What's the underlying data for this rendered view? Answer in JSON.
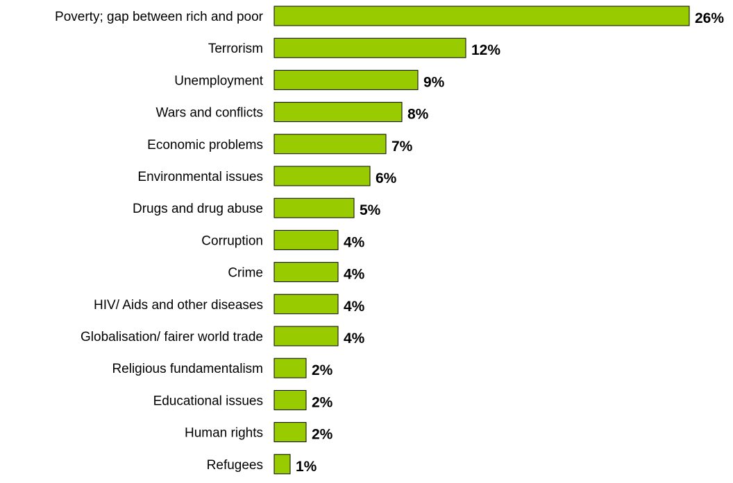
{
  "chart_data": {
    "type": "bar",
    "orientation": "horizontal",
    "categories": [
      "Poverty; gap between rich and poor",
      "Terrorism",
      "Unemployment",
      "Wars and conflicts",
      "Economic problems",
      "Environmental issues",
      "Drugs and drug abuse",
      "Corruption",
      "Crime",
      "HIV/ Aids and other diseases",
      "Globalisation/ fairer world trade",
      "Religious fundamentalism",
      "Educational issues",
      "Human rights",
      "Refugees"
    ],
    "values": [
      26,
      12,
      9,
      8,
      7,
      6,
      5,
      4,
      4,
      4,
      4,
      2,
      2,
      2,
      1
    ],
    "value_labels": [
      "26%",
      "12%",
      "9%",
      "8%",
      "7%",
      "6%",
      "5%",
      "4%",
      "4%",
      "4%",
      "4%",
      "2%",
      "2%",
      "2%",
      "1%"
    ],
    "title": "",
    "xlabel": "",
    "ylabel": "",
    "xlim": [
      0,
      26
    ],
    "grid": false,
    "legend": "none",
    "bar_color": "#99cc00",
    "bar_outline": "#000000"
  }
}
